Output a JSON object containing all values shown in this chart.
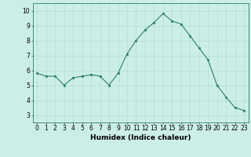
{
  "x": [
    0,
    1,
    2,
    3,
    4,
    5,
    6,
    7,
    8,
    9,
    10,
    11,
    12,
    13,
    14,
    15,
    16,
    17,
    18,
    19,
    20,
    21,
    22,
    23
  ],
  "y": [
    5.8,
    5.6,
    5.6,
    5.0,
    5.5,
    5.6,
    5.7,
    5.6,
    5.0,
    5.8,
    7.1,
    8.0,
    8.7,
    9.2,
    9.8,
    9.3,
    9.1,
    8.3,
    7.5,
    6.7,
    5.0,
    4.2,
    3.5,
    3.3
  ],
  "xlim": [
    -0.5,
    23.5
  ],
  "ylim": [
    2.5,
    10.5
  ],
  "yticks": [
    3,
    4,
    5,
    6,
    7,
    8,
    9,
    10
  ],
  "xticks": [
    0,
    1,
    2,
    3,
    4,
    5,
    6,
    7,
    8,
    9,
    10,
    11,
    12,
    13,
    14,
    15,
    16,
    17,
    18,
    19,
    20,
    21,
    22,
    23
  ],
  "xlabel": "Humidex (Indice chaleur)",
  "line_color": "#2e7d6b",
  "marker_color": "#2e7d6b",
  "bg_color": "#cceee8",
  "grid_color": "#aad8d0",
  "axis_color": "#2e7d6b",
  "tick_fontsize": 5.5,
  "xlabel_fontsize": 6.5
}
